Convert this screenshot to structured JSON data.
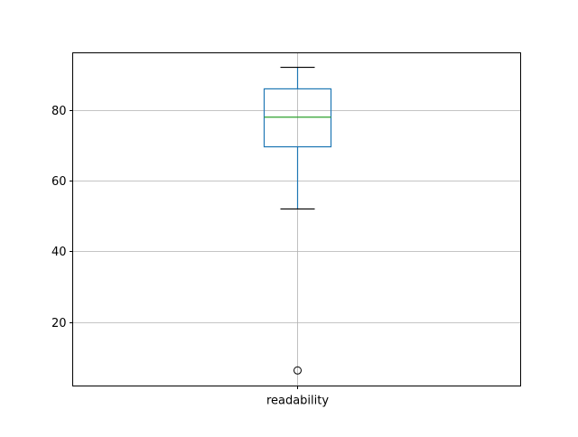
{
  "chart_data": {
    "type": "boxplot",
    "title": "",
    "xlabel": "",
    "ylabel": "",
    "categories": [
      "readability"
    ],
    "boxes": [
      {
        "name": "readability",
        "whisker_low": 52.0,
        "q1": 69.6,
        "median": 78.0,
        "q3": 86.0,
        "whisker_high": 92.1,
        "outliers": [
          6.3
        ]
      }
    ],
    "ylim": [
      1.9,
      96.2
    ],
    "yticks": [
      20,
      40,
      60,
      80
    ],
    "grid": true,
    "colors": {
      "box": "#1f77b4",
      "median": "#2ca02c",
      "whisker_cap": "#000000",
      "grid": "#b0b0b0",
      "outlier": "#000000"
    }
  }
}
